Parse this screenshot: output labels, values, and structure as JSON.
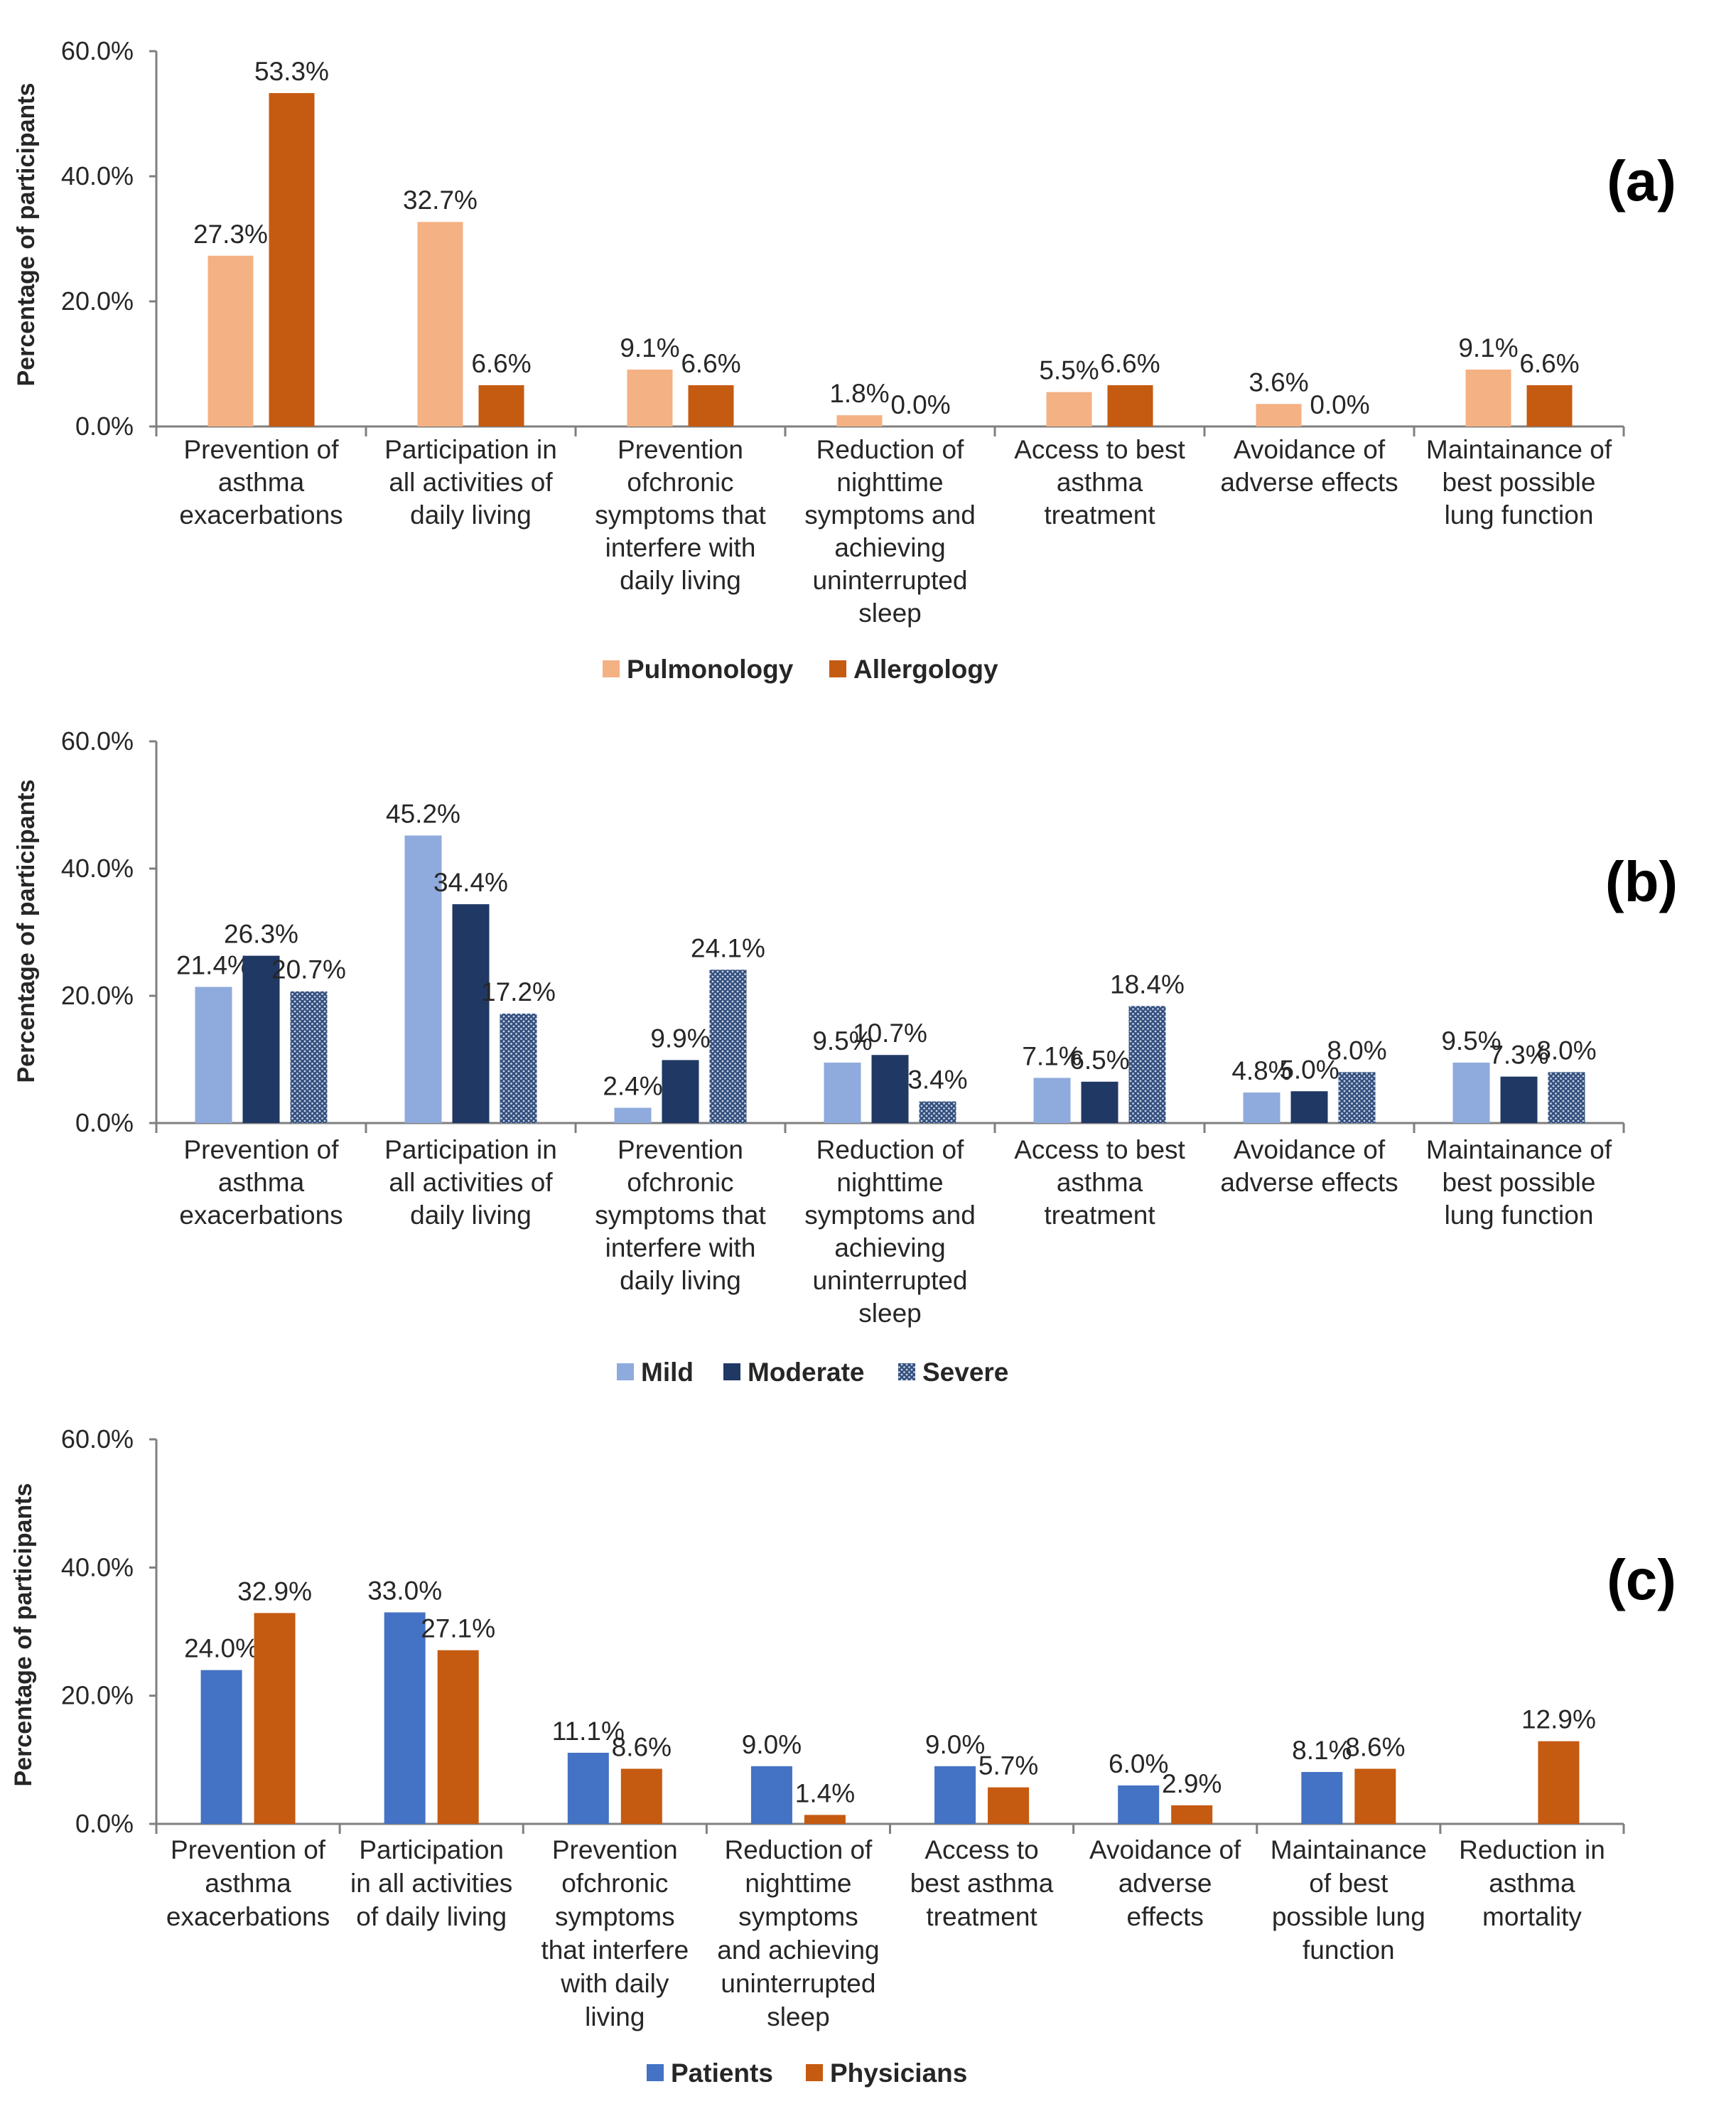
{
  "panels": [
    {
      "panel_label": "(a)",
      "chart_data": {
        "type": "bar",
        "title": "",
        "xlabel": "",
        "ylabel": "Percentage of participants",
        "ylim": [
          0,
          60
        ],
        "yticks": [
          "0.0%",
          "20.0%",
          "40.0%",
          "60.0%"
        ],
        "categories": [
          [
            "Prevention of",
            "asthma",
            "exacerbations"
          ],
          [
            "Participation in",
            "all activities of",
            "daily living"
          ],
          [
            "Prevention",
            "ofchronic",
            "symptoms that",
            "interfere with",
            "daily living"
          ],
          [
            "Reduction of",
            "nighttime",
            "symptoms and",
            "achieving",
            "uninterrupted",
            "sleep"
          ],
          [
            "Access to best",
            "asthma",
            "treatment"
          ],
          [
            "Avoidance of",
            "adverse effects"
          ],
          [
            "Maintainance of",
            "best possible",
            "lung function"
          ]
        ],
        "series": [
          {
            "name": "Pulmonology",
            "color": "#F4B183",
            "pattern": "solid",
            "values": [
              27.3,
              32.7,
              9.1,
              1.8,
              5.5,
              3.6,
              9.1
            ],
            "labels": [
              "27.3%",
              "32.7%",
              "9.1%",
              "1.8%",
              "5.5%",
              "3.6%",
              "9.1%"
            ]
          },
          {
            "name": "Allergology",
            "color": "#C55A11",
            "pattern": "solid",
            "values": [
              53.3,
              6.6,
              6.6,
              0.0,
              6.6,
              0.0,
              6.6
            ],
            "labels": [
              "53.3%",
              "6.6%",
              "6.6%",
              "0.0%",
              "6.6%",
              "0.0%",
              "6.6%"
            ]
          }
        ]
      }
    },
    {
      "panel_label": "(b)",
      "chart_data": {
        "type": "bar",
        "title": "",
        "xlabel": "",
        "ylabel": "Percentage of participants",
        "ylim": [
          0,
          60
        ],
        "yticks": [
          "0.0%",
          "20.0%",
          "40.0%",
          "60.0%"
        ],
        "categories": [
          [
            "Prevention of",
            "asthma",
            "exacerbations"
          ],
          [
            "Participation in",
            "all activities of",
            "daily living"
          ],
          [
            "Prevention",
            "ofchronic",
            "symptoms that",
            "interfere with",
            "daily living"
          ],
          [
            "Reduction of",
            "nighttime",
            "symptoms and",
            "achieving",
            "uninterrupted",
            "sleep"
          ],
          [
            "Access to best",
            "asthma",
            "treatment"
          ],
          [
            "Avoidance of",
            "adverse effects"
          ],
          [
            "Maintainance of",
            "best possible",
            "lung function"
          ]
        ],
        "series": [
          {
            "name": "Mild",
            "color": "#8FAADC",
            "pattern": "solid",
            "values": [
              21.4,
              45.2,
              2.4,
              9.5,
              7.1,
              4.8,
              9.5
            ],
            "labels": [
              "21.4%",
              "45.2%",
              "2.4%",
              "9.5%",
              "7.1%",
              "4.8%",
              "9.5%"
            ]
          },
          {
            "name": "Moderate",
            "color": "#203864",
            "pattern": "solid",
            "values": [
              26.3,
              34.4,
              9.9,
              10.7,
              6.5,
              5.0,
              7.3
            ],
            "labels": [
              "26.3%",
              "34.4%",
              "9.9%",
              "10.7%",
              "6.5%",
              "5.0%",
              "7.3%"
            ]
          },
          {
            "name": "Severe",
            "color": "#2F4F7F",
            "pattern": "dots",
            "values": [
              20.7,
              17.2,
              24.1,
              3.4,
              18.4,
              8.0,
              8.0
            ],
            "labels": [
              "20.7%",
              "17.2%",
              "24.1%",
              "3.4%",
              "18.4%",
              "8.0%",
              "8.0%"
            ]
          }
        ]
      }
    },
    {
      "panel_label": "(c)",
      "chart_data": {
        "type": "bar",
        "title": "",
        "xlabel": "",
        "ylabel": "Percentage of participants",
        "ylim": [
          0,
          60
        ],
        "yticks": [
          "0.0%",
          "20.0%",
          "40.0%",
          "60.0%"
        ],
        "categories": [
          [
            "Prevention of",
            "asthma",
            "exacerbations"
          ],
          [
            "Participation",
            "in all activities",
            "of daily living"
          ],
          [
            "Prevention",
            "ofchronic",
            "symptoms",
            "that interfere",
            "with daily",
            "living"
          ],
          [
            "Reduction of",
            "nighttime",
            "symptoms",
            "and achieving",
            "uninterrupted",
            "sleep"
          ],
          [
            "Access to",
            "best asthma",
            "treatment"
          ],
          [
            "Avoidance of",
            "adverse",
            "effects"
          ],
          [
            "Maintainance",
            "of best",
            "possible lung",
            "function"
          ],
          [
            "Reduction in",
            "asthma",
            "mortality"
          ]
        ],
        "series": [
          {
            "name": "Patients",
            "color": "#4472C4",
            "pattern": "solid",
            "values": [
              24.0,
              33.0,
              11.1,
              9.0,
              9.0,
              6.0,
              8.1,
              null
            ],
            "labels": [
              "24.0%",
              "33.0%",
              "11.1%",
              "9.0%",
              "9.0%",
              "6.0%",
              "8.1%",
              null
            ]
          },
          {
            "name": "Physicians",
            "color": "#C55A11",
            "pattern": "solid",
            "values": [
              32.9,
              27.1,
              8.6,
              1.4,
              5.7,
              2.9,
              8.6,
              12.9
            ],
            "labels": [
              "32.9%",
              "27.1%",
              "8.6%",
              "1.4%",
              "5.7%",
              "2.9%",
              "8.6%",
              "12.9%"
            ]
          }
        ]
      }
    }
  ]
}
